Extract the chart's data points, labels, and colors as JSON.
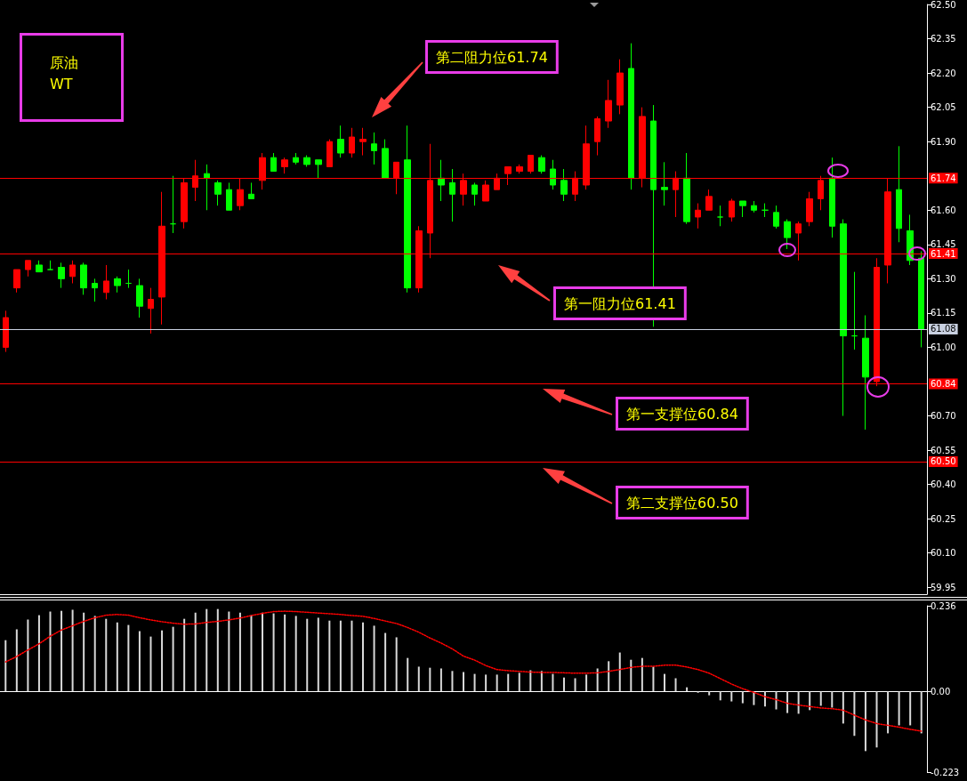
{
  "chart_data": [
    {
      "type": "candlestick",
      "title": "原油\nWT",
      "tick_labels": "y",
      "categories": [
        null,
        null,
        null,
        null,
        null,
        null,
        null,
        null,
        null,
        null,
        null,
        null,
        null,
        null,
        null,
        null,
        null,
        null,
        null,
        null,
        null,
        null,
        null,
        null,
        null,
        null,
        null,
        null,
        null,
        null,
        null,
        null,
        null,
        null,
        null,
        null,
        null,
        null,
        null,
        null,
        null,
        null,
        null,
        null,
        null,
        null,
        null,
        null,
        null,
        null,
        null,
        null,
        null,
        null,
        null,
        null,
        null,
        null,
        null,
        null,
        null,
        null,
        null,
        null,
        null,
        null,
        null,
        null,
        null,
        null,
        null,
        null,
        null,
        null,
        null,
        null,
        null,
        null,
        null,
        null,
        null,
        null,
        null
      ],
      "ohlc": [
        [
          61.0,
          61.16,
          60.98,
          61.13
        ],
        [
          61.26,
          61.34,
          61.24,
          61.34
        ],
        [
          61.34,
          61.38,
          61.31,
          61.38
        ],
        [
          61.36,
          61.38,
          61.33,
          61.33
        ],
        [
          61.34,
          61.38,
          61.34,
          61.34
        ],
        [
          61.35,
          61.37,
          61.26,
          61.3
        ],
        [
          61.31,
          61.38,
          61.28,
          61.36
        ],
        [
          61.36,
          61.37,
          61.23,
          61.26
        ],
        [
          61.28,
          61.3,
          61.2,
          61.26
        ],
        [
          61.24,
          61.36,
          61.21,
          61.29
        ],
        [
          61.3,
          61.31,
          61.24,
          61.27
        ],
        [
          61.28,
          61.34,
          61.26,
          61.28
        ],
        [
          61.27,
          61.3,
          61.13,
          61.18
        ],
        [
          61.17,
          61.26,
          61.06,
          61.21
        ],
        [
          61.22,
          61.68,
          61.1,
          61.53
        ],
        [
          61.54,
          61.75,
          61.5,
          61.54
        ],
        [
          61.55,
          61.74,
          61.52,
          61.72
        ],
        [
          61.7,
          61.82,
          61.64,
          61.75
        ],
        [
          61.76,
          61.8,
          61.6,
          61.74
        ],
        [
          61.72,
          61.73,
          61.62,
          61.67
        ],
        [
          61.69,
          61.72,
          61.6,
          61.6
        ],
        [
          61.62,
          61.74,
          61.6,
          61.69
        ],
        [
          61.67,
          61.72,
          61.65,
          61.65
        ],
        [
          61.73,
          61.85,
          61.69,
          61.83
        ],
        [
          61.83,
          61.85,
          61.77,
          61.77
        ],
        [
          61.79,
          61.83,
          61.76,
          61.82
        ],
        [
          61.83,
          61.85,
          61.8,
          61.81
        ],
        [
          61.83,
          61.84,
          61.79,
          61.8
        ],
        [
          61.82,
          61.82,
          61.74,
          61.8
        ],
        [
          61.79,
          61.91,
          61.79,
          61.9
        ],
        [
          61.91,
          61.97,
          61.83,
          61.85
        ],
        [
          61.85,
          61.96,
          61.83,
          61.92
        ],
        [
          61.9,
          61.96,
          61.84,
          61.91
        ],
        [
          61.89,
          61.94,
          61.8,
          61.86
        ],
        [
          61.87,
          61.91,
          61.74,
          61.74
        ],
        [
          61.74,
          61.81,
          61.67,
          61.81
        ],
        [
          61.82,
          61.97,
          61.24,
          61.26
        ],
        [
          61.26,
          61.53,
          61.24,
          61.51
        ],
        [
          61.5,
          61.89,
          61.39,
          61.73
        ],
        [
          61.74,
          61.82,
          61.64,
          61.71
        ],
        [
          61.72,
          61.78,
          61.55,
          61.67
        ],
        [
          61.67,
          61.76,
          61.62,
          61.73
        ],
        [
          61.71,
          61.72,
          61.62,
          61.67
        ],
        [
          61.64,
          61.73,
          61.64,
          61.71
        ],
        [
          61.69,
          61.76,
          61.69,
          61.74
        ],
        [
          61.76,
          61.79,
          61.71,
          61.79
        ],
        [
          61.77,
          61.8,
          61.76,
          61.79
        ],
        [
          61.77,
          61.84,
          61.76,
          61.84
        ],
        [
          61.83,
          61.84,
          61.76,
          61.77
        ],
        [
          61.78,
          61.82,
          61.69,
          61.71
        ],
        [
          61.73,
          61.78,
          61.64,
          61.67
        ],
        [
          61.67,
          61.77,
          61.64,
          61.74
        ],
        [
          61.71,
          61.97,
          61.69,
          61.89
        ],
        [
          61.9,
          62.01,
          61.84,
          62.0
        ],
        [
          61.99,
          62.17,
          61.96,
          62.08
        ],
        [
          62.06,
          62.26,
          62.02,
          62.2
        ],
        [
          62.22,
          62.33,
          61.69,
          61.74
        ],
        [
          61.74,
          62.05,
          61.7,
          62.01
        ],
        [
          61.99,
          62.06,
          61.09,
          61.69
        ],
        [
          61.7,
          61.81,
          61.62,
          61.69
        ],
        [
          61.69,
          61.77,
          61.57,
          61.74
        ],
        [
          61.74,
          61.85,
          61.54,
          61.55
        ],
        [
          61.57,
          61.63,
          61.52,
          61.6
        ],
        [
          61.6,
          61.69,
          61.6,
          61.66
        ],
        [
          61.57,
          61.62,
          61.53,
          61.57
        ],
        [
          61.57,
          61.65,
          61.55,
          61.64
        ],
        [
          61.64,
          61.64,
          61.57,
          61.62
        ],
        [
          61.62,
          61.64,
          61.59,
          61.6
        ],
        [
          61.6,
          61.63,
          61.57,
          61.6
        ],
        [
          61.59,
          61.62,
          61.52,
          61.53
        ],
        [
          61.55,
          61.56,
          61.43,
          61.48
        ],
        [
          61.5,
          61.55,
          61.38,
          61.54
        ],
        [
          61.55,
          61.68,
          61.53,
          61.65
        ],
        [
          61.65,
          61.75,
          61.6,
          61.73
        ],
        [
          61.74,
          61.83,
          61.48,
          61.53
        ],
        [
          61.54,
          61.56,
          60.7,
          61.05
        ],
        [
          61.05,
          61.33,
          60.99,
          61.05
        ],
        [
          61.04,
          61.14,
          60.64,
          60.87
        ],
        [
          60.85,
          61.39,
          60.83,
          61.35
        ],
        [
          61.36,
          61.74,
          61.28,
          61.68
        ],
        [
          61.69,
          61.88,
          61.46,
          61.52
        ],
        [
          61.51,
          61.58,
          61.36,
          61.38
        ],
        [
          61.39,
          61.42,
          61.0,
          61.08
        ]
      ],
      "colors": [
        "#ff0000",
        "#ff0000",
        "#ff0000",
        "#00ff00",
        "#00ff00",
        "#00ff00",
        "#ff0000",
        "#00ff00",
        "#00ff00",
        "#ff0000",
        "#00ff00",
        "#00ff00",
        "#00ff00",
        "#ff0000",
        "#ff0000",
        "#00ff00",
        "#ff0000",
        "#ff0000",
        "#00ff00",
        "#00ff00",
        "#00ff00",
        "#ff0000",
        "#00ff00",
        "#ff0000",
        "#00ff00",
        "#ff0000",
        "#00ff00",
        "#00ff00",
        "#00ff00",
        "#ff0000",
        "#00ff00",
        "#ff0000",
        "#ff0000",
        "#00ff00",
        "#00ff00",
        "#ff0000",
        "#00ff00",
        "#ff0000",
        "#ff0000",
        "#00ff00",
        "#00ff00",
        "#ff0000",
        "#00ff00",
        "#ff0000",
        "#ff0000",
        "#ff0000",
        "#ff0000",
        "#ff0000",
        "#00ff00",
        "#00ff00",
        "#00ff00",
        "#ff0000",
        "#ff0000",
        "#ff0000",
        "#ff0000",
        "#ff0000",
        "#00ff00",
        "#ff0000",
        "#00ff00",
        "#00ff00",
        "#ff0000",
        "#00ff00",
        "#ff0000",
        "#ff0000",
        "#00ff00",
        "#ff0000",
        "#00ff00",
        "#00ff00",
        "#00ff00",
        "#00ff00",
        "#00ff00",
        "#ff0000",
        "#ff0000",
        "#ff0000",
        "#00ff00",
        "#00ff00",
        "#00ff00",
        "#00ff00",
        "#ff0000",
        "#ff0000",
        "#00ff00",
        "#00ff00",
        "#00ff00"
      ],
      "ylim": [
        59.92,
        62.5
      ],
      "yticks": [
        {
          "value": 59.95,
          "label": "59.95"
        },
        {
          "value": 60.1,
          "label": "60.10"
        },
        {
          "value": 60.25,
          "label": "60.25"
        },
        {
          "value": 60.4,
          "label": "60.40"
        },
        {
          "value": 60.55,
          "label": "60.55"
        },
        {
          "value": 60.7,
          "label": "60.70"
        },
        {
          "value": 61.0,
          "label": "61.00"
        },
        {
          "value": 61.15,
          "label": "61.15"
        },
        {
          "value": 61.3,
          "label": "61.30"
        },
        {
          "value": 61.45,
          "label": "61.45"
        },
        {
          "value": 61.6,
          "label": "61.60"
        },
        {
          "value": 61.9,
          "label": "61.90"
        },
        {
          "value": 62.05,
          "label": "62.05"
        },
        {
          "value": 62.2,
          "label": "62.20"
        },
        {
          "value": 62.35,
          "label": "62.35"
        },
        {
          "value": 62.5,
          "label": "62.50"
        }
      ],
      "ref_lines": [
        {
          "axis": "y",
          "value": 61.74,
          "label": "61.74",
          "color": "#ff0000"
        },
        {
          "axis": "y",
          "value": 61.41,
          "label": "61.41",
          "color": "#ff0000"
        },
        {
          "axis": "y",
          "value": 61.08,
          "label": "61.08",
          "color": "#c8d0e0"
        },
        {
          "axis": "y",
          "value": 60.84,
          "label": "60.84",
          "color": "#ff0000"
        },
        {
          "axis": "y",
          "value": 60.5,
          "label": "60.50",
          "color": "#ff0000"
        }
      ],
      "annotations": [
        "第二阻力位61.74",
        "第一阻力位61.41",
        "第一支撑位60.84",
        "第二支撑位60.50"
      ]
    },
    {
      "type": "bar",
      "tick_labels": "y",
      "marker": "none",
      "categories": [
        null,
        null,
        null,
        null,
        null,
        null,
        null,
        null,
        null,
        null,
        null,
        null,
        null,
        null,
        null,
        null,
        null,
        null,
        null,
        null,
        null,
        null,
        null,
        null,
        null,
        null,
        null,
        null,
        null,
        null,
        null,
        null,
        null,
        null,
        null,
        null,
        null,
        null,
        null,
        null,
        null,
        null,
        null,
        null,
        null,
        null,
        null,
        null,
        null,
        null,
        null,
        null,
        null,
        null,
        null,
        null,
        null,
        null,
        null,
        null,
        null,
        null,
        null,
        null,
        null,
        null,
        null,
        null,
        null,
        null,
        null,
        null,
        null,
        null,
        null,
        null,
        null,
        null,
        null,
        null,
        null,
        null,
        null
      ],
      "ylim": [
        -0.223,
        0.236
      ],
      "yticks": [
        -0.223,
        {
          "value": 0,
          "label": "0.00"
        },
        0.236
      ],
      "series": [
        {
          "type": "bar",
          "color": "#d9d9d9",
          "values": [
            0.141,
            0.171,
            0.198,
            0.21,
            0.22,
            0.222,
            0.225,
            0.217,
            0.208,
            0.2,
            0.19,
            0.183,
            0.166,
            0.151,
            0.168,
            0.178,
            0.2,
            0.217,
            0.227,
            0.227,
            0.22,
            0.217,
            0.21,
            0.217,
            0.215,
            0.212,
            0.208,
            0.2,
            0.203,
            0.195,
            0.195,
            0.195,
            0.19,
            0.181,
            0.161,
            0.149,
            0.092,
            0.068,
            0.065,
            0.063,
            0.056,
            0.053,
            0.048,
            0.046,
            0.046,
            0.048,
            0.051,
            0.058,
            0.056,
            0.048,
            0.038,
            0.036,
            0.046,
            0.063,
            0.083,
            0.107,
            0.087,
            0.092,
            0.068,
            0.048,
            0.036,
            0.011,
            -0.004,
            -0.011,
            -0.025,
            -0.028,
            -0.033,
            -0.038,
            -0.042,
            -0.05,
            -0.06,
            -0.062,
            -0.052,
            -0.04,
            -0.045,
            -0.089,
            -0.123,
            -0.165,
            -0.155,
            -0.116,
            -0.094,
            -0.094,
            -0.116
          ]
        },
        {
          "type": "line",
          "color": "#ff0000",
          "line_style": "dotted",
          "values": [
            0.081,
            0.096,
            0.114,
            0.131,
            0.152,
            0.169,
            0.181,
            0.193,
            0.203,
            0.21,
            0.212,
            0.21,
            0.203,
            0.197,
            0.192,
            0.188,
            0.185,
            0.186,
            0.19,
            0.193,
            0.197,
            0.202,
            0.209,
            0.215,
            0.22,
            0.221,
            0.22,
            0.218,
            0.216,
            0.214,
            0.212,
            0.209,
            0.207,
            0.201,
            0.194,
            0.187,
            0.176,
            0.163,
            0.147,
            0.133,
            0.117,
            0.097,
            0.086,
            0.071,
            0.06,
            0.057,
            0.055,
            0.053,
            0.052,
            0.052,
            0.051,
            0.05,
            0.05,
            0.051,
            0.055,
            0.06,
            0.066,
            0.069,
            0.069,
            0.072,
            0.072,
            0.067,
            0.06,
            0.05,
            0.035,
            0.02,
            0.007,
            -0.003,
            -0.015,
            -0.023,
            -0.033,
            -0.038,
            -0.042,
            -0.046,
            -0.048,
            -0.052,
            -0.066,
            -0.079,
            -0.089,
            -0.094,
            -0.099,
            -0.105,
            -0.11
          ]
        }
      ]
    }
  ]
}
